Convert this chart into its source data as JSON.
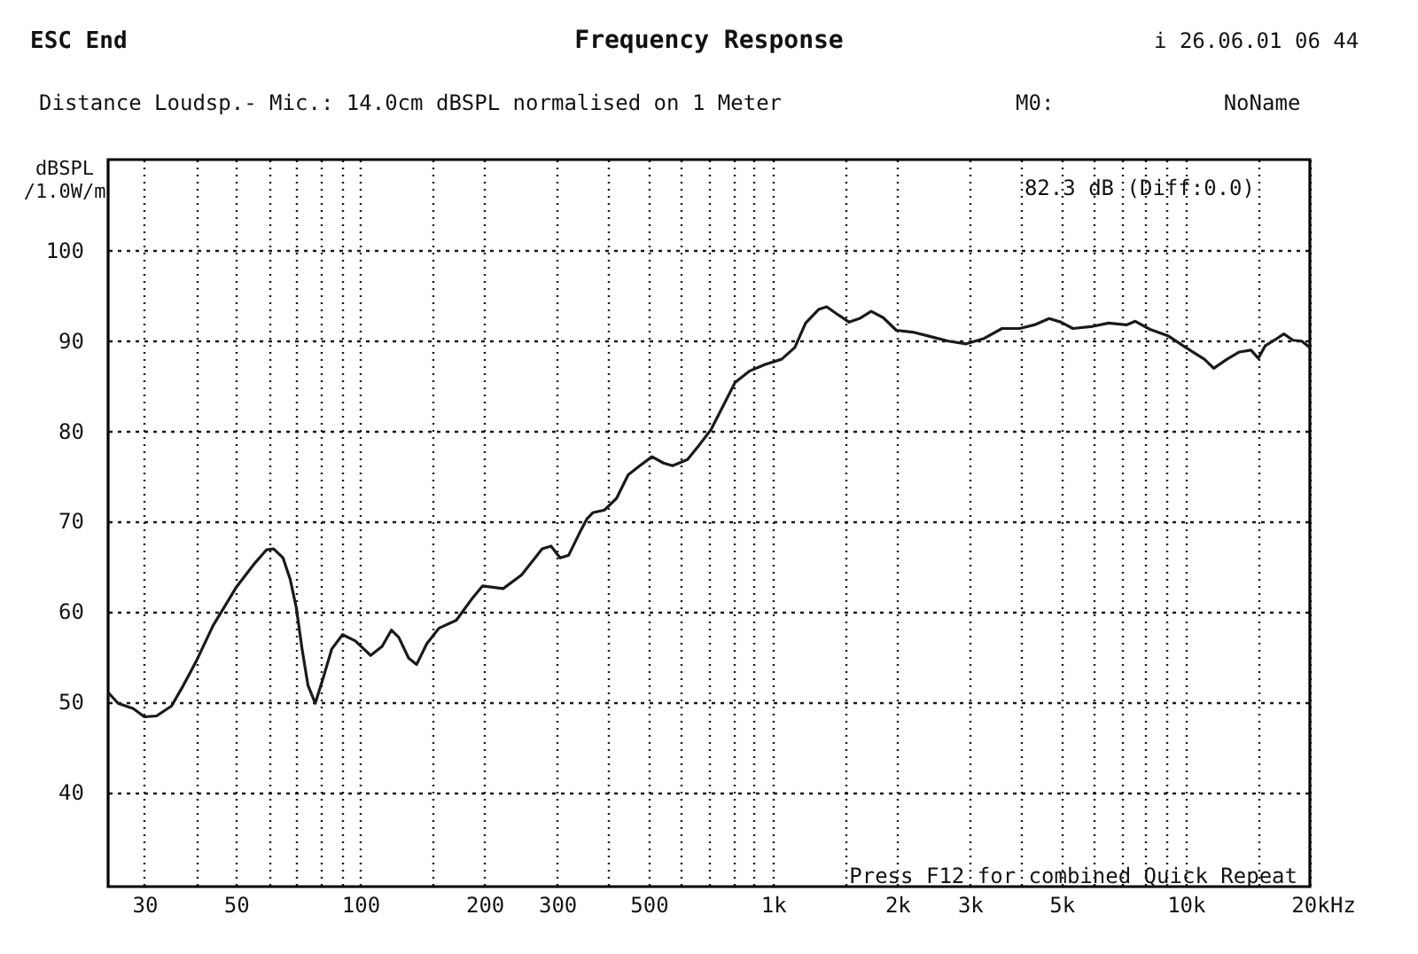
{
  "chart_data": {
    "type": "line",
    "title": "Frequency Response",
    "subtitle": "Distance Loudsp.- Mic.: 14.0cm dBSPL normalised on 1 Meter",
    "xlabel": "Hz",
    "ylabel": "dBSPL\n/1.0W/m",
    "annotations": [
      "ESC End",
      "i 26.06.01 06 44",
      "M0:",
      "NoName",
      "82.3 dB (Diff:0.0)",
      "Press F12 for combined Quick Repeat"
    ],
    "log": "x",
    "grid": true,
    "xlim": [
      24.5,
      20000
    ],
    "ylim": [
      29.5,
      110
    ],
    "xticks": [
      30,
      {
        "value": 40,
        "label": null
      },
      50,
      {
        "value": 60,
        "label": null
      },
      {
        "value": 70,
        "label": null
      },
      {
        "value": 80,
        "label": null
      },
      {
        "value": 90,
        "label": null
      },
      100,
      {
        "value": 150,
        "label": null
      },
      200,
      300,
      {
        "value": 400,
        "label": null
      },
      500,
      {
        "value": 600,
        "label": null
      },
      {
        "value": 700,
        "label": null
      },
      {
        "value": 800,
        "label": null
      },
      {
        "value": 900,
        "label": null
      },
      {
        "value": 1000,
        "label": "1k"
      },
      {
        "value": 1500,
        "label": null
      },
      {
        "value": 2000,
        "label": "2k"
      },
      {
        "value": 3000,
        "label": "3k"
      },
      {
        "value": 4000,
        "label": null
      },
      {
        "value": 5000,
        "label": "5k"
      },
      {
        "value": 6000,
        "label": null
      },
      {
        "value": 7000,
        "label": null
      },
      {
        "value": 8000,
        "label": null
      },
      {
        "value": 9000,
        "label": null
      },
      {
        "value": 10000,
        "label": "10k"
      },
      {
        "value": 15000,
        "label": null
      },
      {
        "value": 20000,
        "label": "20k"
      }
    ],
    "yticks": [
      40,
      50,
      60,
      70,
      80,
      90,
      100
    ],
    "series": [
      {
        "color": "#1a1a1a",
        "x": [
          24.5,
          25.9,
          28.2,
          30,
          32.1,
          34.9,
          37.3,
          40,
          44,
          50,
          55.5,
          59.3,
          61.7,
          65,
          67.6,
          70,
          72.3,
          74.7,
          77.8,
          81.2,
          85.3,
          90.6,
          97.3,
          106,
          113,
          119,
          124,
          131,
          137,
          145,
          155,
          171,
          186,
          198,
          222,
          246,
          276,
          290,
          305,
          320,
          342,
          354,
          366,
          391,
          418,
          446,
          476,
          509,
          543,
          571,
          621,
          663,
          708,
          757,
          809,
          879,
          955,
          1050,
          1130,
          1200,
          1290,
          1350,
          1440,
          1530,
          1620,
          1730,
          1850,
          1990,
          2180,
          2410,
          2660,
          2940,
          3250,
          3590,
          3960,
          4300,
          4670,
          4990,
          5330,
          5890,
          6510,
          7190,
          7550,
          8200,
          9060,
          10000,
          11100,
          11700,
          12600,
          13500,
          14400,
          15000,
          15600,
          16400,
          17300,
          18200,
          19100,
          20000
        ],
        "values": [
          51.0,
          49.8,
          49.2,
          48.3,
          48.4,
          49.5,
          51.8,
          54.4,
          58.4,
          62.6,
          65.3,
          66.8,
          66.9,
          65.9,
          63.6,
          60.4,
          55.8,
          51.8,
          49.8,
          52.5,
          55.8,
          57.4,
          56.7,
          55.1,
          56.1,
          57.9,
          57.1,
          54.8,
          54.1,
          56.4,
          58.1,
          59.0,
          61.3,
          62.8,
          62.5,
          64.0,
          66.9,
          67.2,
          65.9,
          66.2,
          68.9,
          70.2,
          70.9,
          71.2,
          72.5,
          75.1,
          76.1,
          77.1,
          76.4,
          76.1,
          76.8,
          78.4,
          80.1,
          82.7,
          85.3,
          86.6,
          87.3,
          87.9,
          89.2,
          91.9,
          93.4,
          93.7,
          92.8,
          92.0,
          92.4,
          93.2,
          92.5,
          91.1,
          90.9,
          90.4,
          89.9,
          89.6,
          90.2,
          91.3,
          91.3,
          91.7,
          92.4,
          92.0,
          91.3,
          91.5,
          91.9,
          91.7,
          92.1,
          91.2,
          90.5,
          89.2,
          87.9,
          86.9,
          87.9,
          88.7,
          88.9,
          88.0,
          89.4,
          90.0,
          90.7,
          90.0,
          89.9,
          89.2
        ]
      }
    ]
  }
}
